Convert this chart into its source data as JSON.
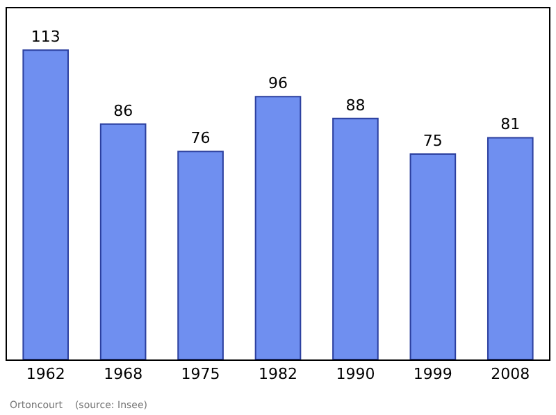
{
  "chart_data": {
    "type": "bar",
    "categories": [
      "1962",
      "1968",
      "1975",
      "1982",
      "1990",
      "1999",
      "2008"
    ],
    "values": [
      113,
      86,
      76,
      96,
      88,
      75,
      81
    ],
    "color": "#6f8ff0",
    "data_labels": true,
    "grid": false,
    "legend": false,
    "annotations": [
      "Ortoncourt    (source: Insee)"
    ]
  }
}
